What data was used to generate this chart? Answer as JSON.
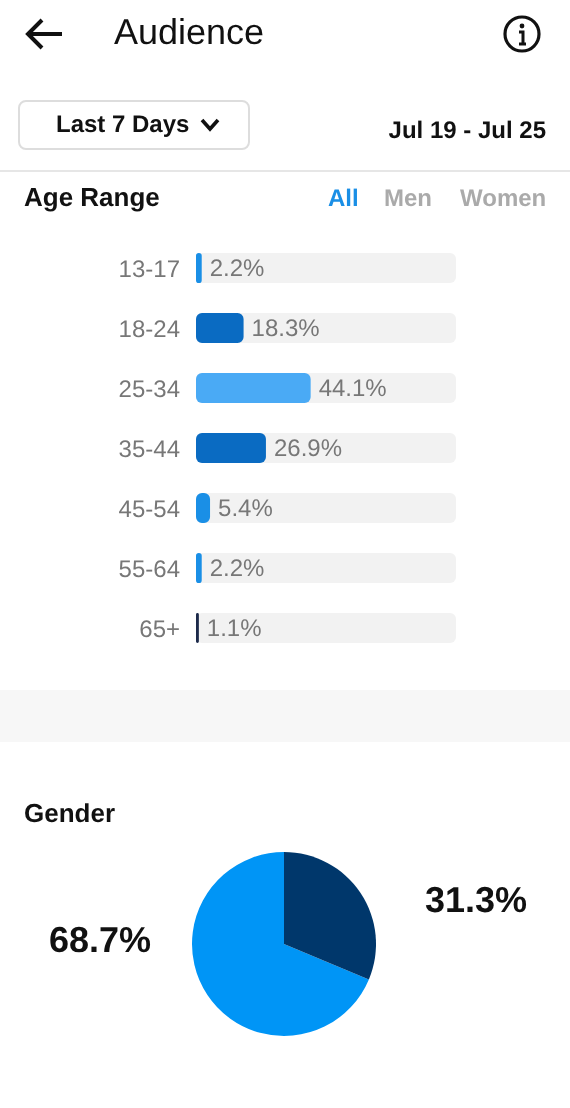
{
  "chart_data": [
    {
      "type": "bar",
      "orientation": "horizontal",
      "title": "Age Range",
      "annotations": [
        "Audience",
        "Last 7 Days",
        "Jul 19 - Jul 25",
        "All",
        "Men",
        "Women"
      ],
      "categories": [
        "13-17",
        "18-24",
        "25-34",
        "35-44",
        "45-54",
        "55-64",
        "65+"
      ],
      "values": [
        2.2,
        18.3,
        44.1,
        26.9,
        5.4,
        2.2,
        1.1
      ],
      "colors": [
        "#1a8fe6",
        "#0a6bc2",
        "#4aaaf5",
        "#0a6bc2",
        "#1a8fe6",
        "#1a8fe6",
        "#1c2a4a"
      ],
      "value_labels": [
        "2.2%",
        "18.3%",
        "44.1%",
        "26.9%",
        "5.4%",
        "2.2%",
        "1.1%"
      ],
      "xlim": [
        0,
        100
      ],
      "tick_labels": "y"
    },
    {
      "type": "pie",
      "title": "Gender",
      "categories": [
        null,
        null
      ],
      "values": [
        68.7,
        31.3
      ],
      "colors": [
        "#0095f6",
        "#00376b"
      ],
      "value_labels": [
        "68.7%",
        "31.3%"
      ]
    }
  ]
}
